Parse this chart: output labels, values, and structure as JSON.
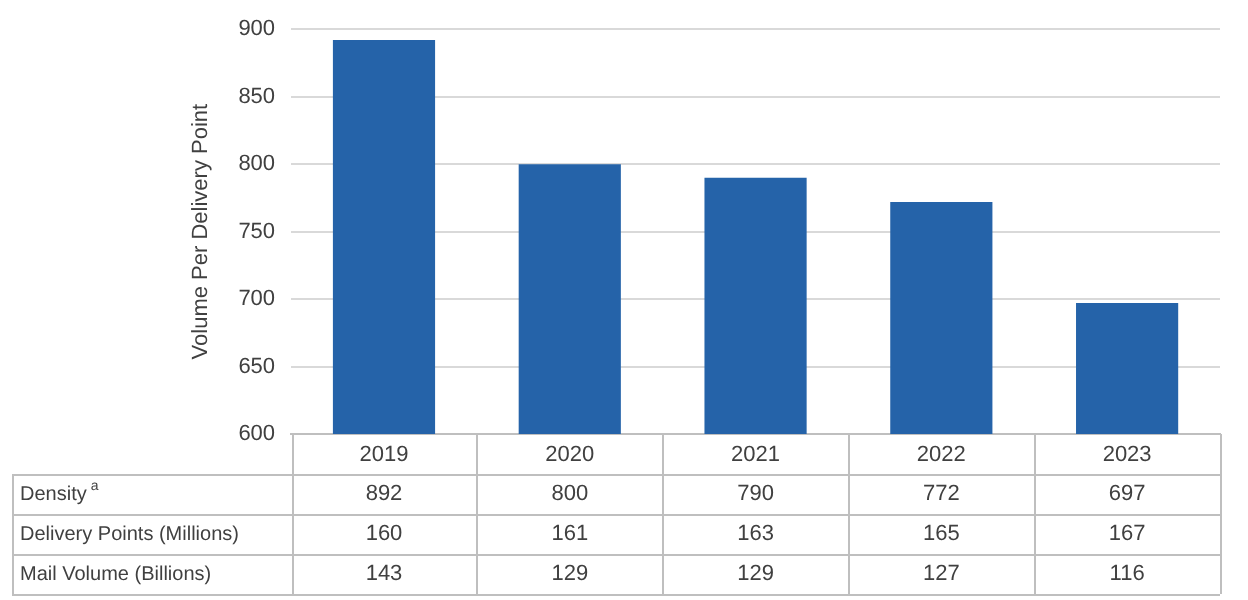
{
  "chart_data": {
    "type": "bar",
    "ylabel": "Volume Per Delivery Point",
    "categories": [
      "2019",
      "2020",
      "2021",
      "2022",
      "2023"
    ],
    "series": [
      {
        "name": "Density$^{a}$",
        "color": "#2563a9",
        "values": [
          892,
          800,
          790,
          772,
          697
        ]
      },
      {
        "name": "Delivery Points (Millions)",
        "values": [
          null,
          null,
          null,
          null,
          null
        ],
        "value_labels": [
          "160",
          "161",
          "163",
          "165",
          "167"
        ]
      },
      {
        "name": "Mail Volume (Billions)",
        "values": [
          null,
          null,
          null,
          null,
          null
        ],
        "value_labels": [
          "143",
          "129",
          "129",
          "127",
          "116"
        ]
      }
    ],
    "ylim": [
      600,
      900
    ],
    "yticks": [
      600,
      650,
      700,
      750,
      800,
      850,
      900
    ],
    "grid": "y",
    "data_labels": true,
    "legend": false
  }
}
